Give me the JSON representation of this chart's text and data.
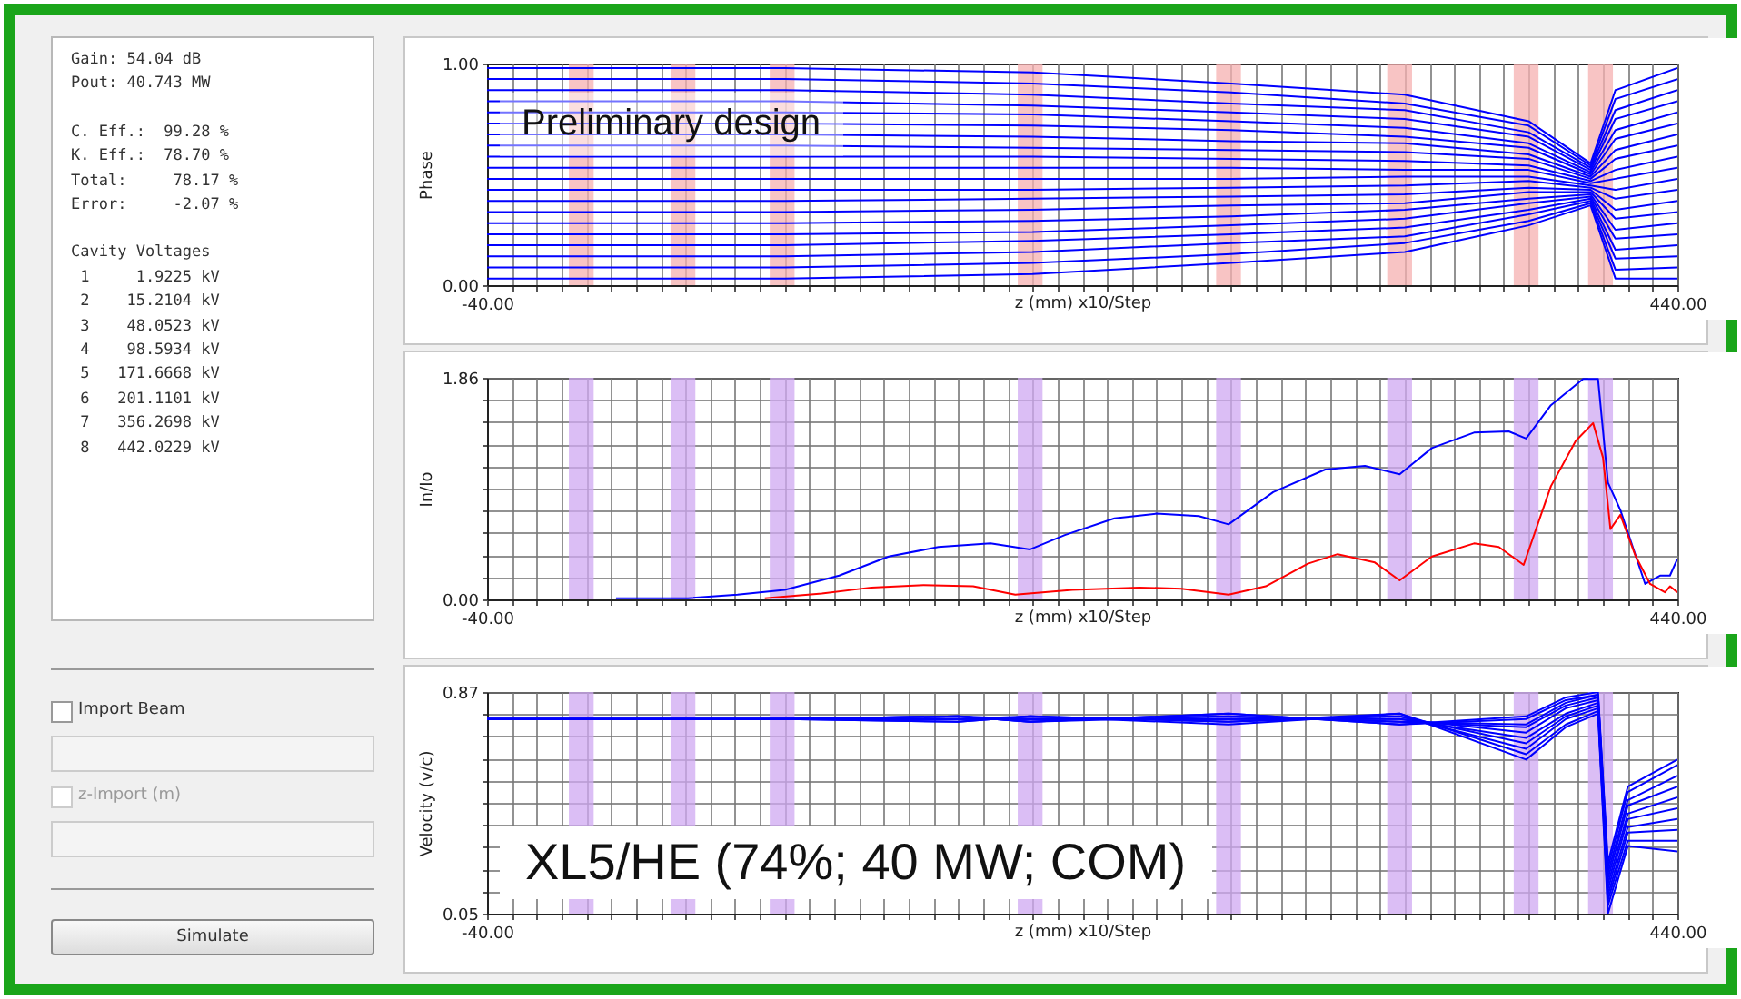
{
  "chart_data": [
    {
      "type": "other",
      "annotations": [
        "Gain: 54.04 dB",
        "Pout: 40.743 MW",
        "C. Eff.:  99.28 %",
        "K. Eff.:  78.70 %",
        "Total:     78.17 %",
        "Error:     -2.07 %",
        "Cavity Voltages",
        " 1     1.9225 kV",
        " 2    15.2104 kV",
        " 3    48.0523 kV",
        " 4    98.5934 kV",
        " 5   171.6668 kV",
        " 6   201.1101 kV",
        " 7   356.2698 kV",
        " 8   442.0229 kV"
      ]
    },
    {
      "type": "other",
      "annotations": [
        "Import Beam",
        "z-Import (m)",
        "Simulate"
      ]
    },
    {
      "type": "line",
      "ylabel": "Phase",
      "xlabel": "z (mm)  x10/Step",
      "annotations": [
        "Preliminary design"
      ],
      "grid": "x",
      "xlim": [
        -40,
        440
      ],
      "xticks": [
        {
          "value": -40,
          "label": "-40.00"
        },
        {
          "value": -30,
          "label": null
        },
        {
          "value": -20,
          "label": null
        },
        {
          "value": -10,
          "label": null
        },
        {
          "value": 0,
          "label": null
        },
        {
          "value": 10,
          "label": null
        },
        {
          "value": 20,
          "label": null
        },
        {
          "value": 30,
          "label": null
        },
        {
          "value": 40,
          "label": null
        },
        {
          "value": 50,
          "label": null
        },
        {
          "value": 60,
          "label": null
        },
        {
          "value": 70,
          "label": null
        },
        {
          "value": 80,
          "label": null
        },
        {
          "value": 90,
          "label": null
        },
        {
          "value": 100,
          "label": null
        },
        {
          "value": 110,
          "label": null
        },
        {
          "value": 120,
          "label": null
        },
        {
          "value": 130,
          "label": null
        },
        {
          "value": 140,
          "label": null
        },
        {
          "value": 150,
          "label": null
        },
        {
          "value": 160,
          "label": null
        },
        {
          "value": 170,
          "label": null
        },
        {
          "value": 180,
          "label": null
        },
        {
          "value": 190,
          "label": null
        },
        {
          "value": 200,
          "label": null
        },
        {
          "value": 210,
          "label": null
        },
        {
          "value": 220,
          "label": null
        },
        {
          "value": 230,
          "label": null
        },
        {
          "value": 240,
          "label": null
        },
        {
          "value": 250,
          "label": null
        },
        {
          "value": 260,
          "label": null
        },
        {
          "value": 270,
          "label": null
        },
        {
          "value": 280,
          "label": null
        },
        {
          "value": 290,
          "label": null
        },
        {
          "value": 300,
          "label": null
        },
        {
          "value": 310,
          "label": null
        },
        {
          "value": 320,
          "label": null
        },
        {
          "value": 330,
          "label": null
        },
        {
          "value": 340,
          "label": null
        },
        {
          "value": 350,
          "label": null
        },
        {
          "value": 360,
          "label": null
        },
        {
          "value": 370,
          "label": null
        },
        {
          "value": 380,
          "label": null
        },
        {
          "value": 390,
          "label": null
        },
        {
          "value": 400,
          "label": null
        },
        {
          "value": 410,
          "label": null
        },
        {
          "value": 420,
          "label": null
        },
        {
          "value": 430,
          "label": null
        },
        {
          "value": 440,
          "label": "440.00"
        }
      ],
      "ylim": [
        0,
        1
      ],
      "yticks": [
        {
          "value": 0,
          "label": "0.00"
        },
        {
          "value": 1,
          "label": "1.00"
        }
      ],
      "bands": [
        {
          "axis": "x",
          "from": -7,
          "to": 3,
          "color": "#f5b0b0"
        },
        {
          "axis": "x",
          "from": 34,
          "to": 44,
          "color": "#f5b0b0"
        },
        {
          "axis": "x",
          "from": 74,
          "to": 84,
          "color": "#f5b0b0"
        },
        {
          "axis": "x",
          "from": 174,
          "to": 184,
          "color": "#f5b0b0"
        },
        {
          "axis": "x",
          "from": 254,
          "to": 264,
          "color": "#f5b0b0"
        },
        {
          "axis": "x",
          "from": 323,
          "to": 333,
          "color": "#f5b0b0"
        },
        {
          "axis": "x",
          "from": 374,
          "to": 384,
          "color": "#f5b0b0"
        },
        {
          "axis": "x",
          "from": 404,
          "to": 414,
          "color": "#f5b0b0"
        }
      ],
      "x": [
        -40,
        80,
        180,
        260,
        330,
        380,
        405,
        415,
        440
      ],
      "series": [
        {
          "color": "#0000ff",
          "values": [
            0.98,
            0.98,
            0.96,
            0.91,
            0.86,
            0.74,
            0.55,
            0.88,
            0.98
          ]
        },
        {
          "color": "#0000ff",
          "values": [
            0.93,
            0.93,
            0.91,
            0.87,
            0.82,
            0.72,
            0.54,
            0.84,
            0.93
          ]
        },
        {
          "color": "#0000ff",
          "values": [
            0.88,
            0.88,
            0.86,
            0.82,
            0.79,
            0.69,
            0.53,
            0.79,
            0.88
          ]
        },
        {
          "color": "#0000ff",
          "values": [
            0.83,
            0.83,
            0.81,
            0.78,
            0.75,
            0.67,
            0.52,
            0.75,
            0.83
          ]
        },
        {
          "color": "#0000ff",
          "values": [
            0.78,
            0.78,
            0.77,
            0.74,
            0.71,
            0.64,
            0.51,
            0.7,
            0.78
          ]
        },
        {
          "color": "#0000ff",
          "values": [
            0.73,
            0.73,
            0.72,
            0.7,
            0.67,
            0.62,
            0.5,
            0.66,
            0.73
          ]
        },
        {
          "color": "#0000ff",
          "values": [
            0.68,
            0.68,
            0.67,
            0.65,
            0.64,
            0.59,
            0.49,
            0.61,
            0.68
          ]
        },
        {
          "color": "#0000ff",
          "values": [
            0.63,
            0.63,
            0.62,
            0.61,
            0.6,
            0.57,
            0.48,
            0.57,
            0.63
          ]
        },
        {
          "color": "#0000ff",
          "values": [
            0.58,
            0.58,
            0.58,
            0.57,
            0.56,
            0.54,
            0.47,
            0.52,
            0.58
          ]
        },
        {
          "color": "#0000ff",
          "values": [
            0.53,
            0.53,
            0.53,
            0.53,
            0.52,
            0.52,
            0.46,
            0.48,
            0.53
          ]
        },
        {
          "color": "#0000ff",
          "values": [
            0.48,
            0.48,
            0.48,
            0.48,
            0.49,
            0.49,
            0.45,
            0.43,
            0.48
          ]
        },
        {
          "color": "#0000ff",
          "values": [
            0.43,
            0.43,
            0.43,
            0.44,
            0.45,
            0.47,
            0.44,
            0.39,
            0.43
          ]
        },
        {
          "color": "#0000ff",
          "values": [
            0.38,
            0.38,
            0.39,
            0.4,
            0.41,
            0.44,
            0.43,
            0.34,
            0.38
          ]
        },
        {
          "color": "#0000ff",
          "values": [
            0.33,
            0.33,
            0.34,
            0.36,
            0.37,
            0.42,
            0.42,
            0.3,
            0.33
          ]
        },
        {
          "color": "#0000ff",
          "values": [
            0.28,
            0.28,
            0.29,
            0.31,
            0.34,
            0.39,
            0.41,
            0.25,
            0.28
          ]
        },
        {
          "color": "#0000ff",
          "values": [
            0.23,
            0.23,
            0.24,
            0.27,
            0.3,
            0.37,
            0.4,
            0.21,
            0.23
          ]
        },
        {
          "color": "#0000ff",
          "values": [
            0.18,
            0.18,
            0.2,
            0.23,
            0.26,
            0.34,
            0.39,
            0.16,
            0.18
          ]
        },
        {
          "color": "#0000ff",
          "values": [
            0.13,
            0.13,
            0.15,
            0.19,
            0.22,
            0.32,
            0.38,
            0.12,
            0.13
          ]
        },
        {
          "color": "#0000ff",
          "values": [
            0.08,
            0.08,
            0.1,
            0.14,
            0.19,
            0.29,
            0.37,
            0.07,
            0.08
          ]
        },
        {
          "color": "#0000ff",
          "values": [
            0.03,
            0.03,
            0.05,
            0.1,
            0.15,
            0.27,
            0.36,
            0.03,
            0.03
          ]
        }
      ]
    },
    {
      "type": "line",
      "ylabel": "In/Io",
      "xlabel": "z (mm)  x10/Step",
      "grid": true,
      "xlim": [
        -40,
        440
      ],
      "xticks": [
        {
          "value": -40,
          "label": "-40.00"
        },
        {
          "value": -30,
          "label": null
        },
        {
          "value": -20,
          "label": null
        },
        {
          "value": -10,
          "label": null
        },
        {
          "value": 0,
          "label": null
        },
        {
          "value": 10,
          "label": null
        },
        {
          "value": 20,
          "label": null
        },
        {
          "value": 30,
          "label": null
        },
        {
          "value": 40,
          "label": null
        },
        {
          "value": 50,
          "label": null
        },
        {
          "value": 60,
          "label": null
        },
        {
          "value": 70,
          "label": null
        },
        {
          "value": 80,
          "label": null
        },
        {
          "value": 90,
          "label": null
        },
        {
          "value": 100,
          "label": null
        },
        {
          "value": 110,
          "label": null
        },
        {
          "value": 120,
          "label": null
        },
        {
          "value": 130,
          "label": null
        },
        {
          "value": 140,
          "label": null
        },
        {
          "value": 150,
          "label": null
        },
        {
          "value": 160,
          "label": null
        },
        {
          "value": 170,
          "label": null
        },
        {
          "value": 180,
          "label": null
        },
        {
          "value": 190,
          "label": null
        },
        {
          "value": 200,
          "label": null
        },
        {
          "value": 210,
          "label": null
        },
        {
          "value": 220,
          "label": null
        },
        {
          "value": 230,
          "label": null
        },
        {
          "value": 240,
          "label": null
        },
        {
          "value": 250,
          "label": null
        },
        {
          "value": 260,
          "label": null
        },
        {
          "value": 270,
          "label": null
        },
        {
          "value": 280,
          "label": null
        },
        {
          "value": 290,
          "label": null
        },
        {
          "value": 300,
          "label": null
        },
        {
          "value": 310,
          "label": null
        },
        {
          "value": 320,
          "label": null
        },
        {
          "value": 330,
          "label": null
        },
        {
          "value": 340,
          "label": null
        },
        {
          "value": 350,
          "label": null
        },
        {
          "value": 360,
          "label": null
        },
        {
          "value": 370,
          "label": null
        },
        {
          "value": 380,
          "label": null
        },
        {
          "value": 390,
          "label": null
        },
        {
          "value": 400,
          "label": null
        },
        {
          "value": 410,
          "label": null
        },
        {
          "value": 420,
          "label": null
        },
        {
          "value": 430,
          "label": null
        },
        {
          "value": 440,
          "label": "440.00"
        }
      ],
      "ylim": [
        0,
        1.86
      ],
      "yticks": [
        {
          "value": 0,
          "label": "0.00"
        },
        {
          "value": 0.186,
          "label": null
        },
        {
          "value": 0.372,
          "label": null
        },
        {
          "value": 0.558,
          "label": null
        },
        {
          "value": 0.744,
          "label": null
        },
        {
          "value": 0.93,
          "label": null
        },
        {
          "value": 1.116,
          "label": null
        },
        {
          "value": 1.302,
          "label": null
        },
        {
          "value": 1.488,
          "label": null
        },
        {
          "value": 1.674,
          "label": null
        },
        {
          "value": 1.86,
          "label": "1.86"
        }
      ],
      "bands": [
        {
          "axis": "x",
          "from": -7,
          "to": 3,
          "color": "#cfa8f2"
        },
        {
          "axis": "x",
          "from": 34,
          "to": 44,
          "color": "#cfa8f2"
        },
        {
          "axis": "x",
          "from": 74,
          "to": 84,
          "color": "#cfa8f2"
        },
        {
          "axis": "x",
          "from": 174,
          "to": 184,
          "color": "#cfa8f2"
        },
        {
          "axis": "x",
          "from": 254,
          "to": 264,
          "color": "#cfa8f2"
        },
        {
          "axis": "x",
          "from": 323,
          "to": 333,
          "color": "#cfa8f2"
        },
        {
          "axis": "x",
          "from": 374,
          "to": 384,
          "color": "#cfa8f2"
        },
        {
          "axis": "x",
          "from": 404,
          "to": 414,
          "color": "#cfa8f2"
        }
      ],
      "series": [
        {
          "color": "#0000ff",
          "x": [
            12,
            41,
            61,
            80,
            102,
            122,
            142,
            163,
            179,
            193,
            213,
            230,
            247,
            259,
            277,
            298,
            314,
            328,
            341,
            358,
            372,
            379,
            389,
            402,
            408,
            412,
            417,
            422,
            427,
            433,
            437,
            440
          ],
          "values": [
            0.01,
            0.01,
            0.04,
            0.08,
            0.2,
            0.36,
            0.44,
            0.47,
            0.42,
            0.54,
            0.68,
            0.72,
            0.7,
            0.63,
            0.9,
            1.09,
            1.12,
            1.05,
            1.27,
            1.4,
            1.41,
            1.35,
            1.63,
            1.85,
            1.85,
            0.98,
            0.75,
            0.44,
            0.13,
            0.2,
            0.2,
            0.34
          ]
        },
        {
          "color": "#ff0000",
          "x": [
            72,
            95,
            115,
            136,
            156,
            173,
            196,
            223,
            240,
            259,
            274,
            291,
            303,
            318,
            328,
            341,
            358,
            368,
            378,
            389,
            399,
            406,
            410,
            413,
            417,
            423,
            429,
            435,
            437,
            440
          ],
          "values": [
            0.01,
            0.05,
            0.1,
            0.12,
            0.11,
            0.04,
            0.08,
            0.1,
            0.09,
            0.04,
            0.11,
            0.3,
            0.38,
            0.31,
            0.16,
            0.36,
            0.47,
            0.44,
            0.29,
            0.95,
            1.33,
            1.48,
            1.19,
            0.59,
            0.71,
            0.37,
            0.13,
            0.06,
            0.11,
            0.06
          ]
        }
      ]
    },
    {
      "type": "line",
      "ylabel": "Velocity (v/c)",
      "xlabel": "z (mm)  x10/Step",
      "annotations": [
        "XL5/HE (74%; 40 MW; COM)"
      ],
      "grid": true,
      "xlim": [
        -40,
        440
      ],
      "xticks": [
        {
          "value": -40,
          "label": "-40.00"
        },
        {
          "value": -30,
          "label": null
        },
        {
          "value": -20,
          "label": null
        },
        {
          "value": -10,
          "label": null
        },
        {
          "value": 0,
          "label": null
        },
        {
          "value": 10,
          "label": null
        },
        {
          "value": 20,
          "label": null
        },
        {
          "value": 30,
          "label": null
        },
        {
          "value": 40,
          "label": null
        },
        {
          "value": 50,
          "label": null
        },
        {
          "value": 60,
          "label": null
        },
        {
          "value": 70,
          "label": null
        },
        {
          "value": 80,
          "label": null
        },
        {
          "value": 90,
          "label": null
        },
        {
          "value": 100,
          "label": null
        },
        {
          "value": 110,
          "label": null
        },
        {
          "value": 120,
          "label": null
        },
        {
          "value": 130,
          "label": null
        },
        {
          "value": 140,
          "label": null
        },
        {
          "value": 150,
          "label": null
        },
        {
          "value": 160,
          "label": null
        },
        {
          "value": 170,
          "label": null
        },
        {
          "value": 180,
          "label": null
        },
        {
          "value": 190,
          "label": null
        },
        {
          "value": 200,
          "label": null
        },
        {
          "value": 210,
          "label": null
        },
        {
          "value": 220,
          "label": null
        },
        {
          "value": 230,
          "label": null
        },
        {
          "value": 240,
          "label": null
        },
        {
          "value": 250,
          "label": null
        },
        {
          "value": 260,
          "label": null
        },
        {
          "value": 270,
          "label": null
        },
        {
          "value": 280,
          "label": null
        },
        {
          "value": 290,
          "label": null
        },
        {
          "value": 300,
          "label": null
        },
        {
          "value": 310,
          "label": null
        },
        {
          "value": 320,
          "label": null
        },
        {
          "value": 330,
          "label": null
        },
        {
          "value": 340,
          "label": null
        },
        {
          "value": 350,
          "label": null
        },
        {
          "value": 360,
          "label": null
        },
        {
          "value": 370,
          "label": null
        },
        {
          "value": 380,
          "label": null
        },
        {
          "value": 390,
          "label": null
        },
        {
          "value": 400,
          "label": null
        },
        {
          "value": 410,
          "label": null
        },
        {
          "value": 420,
          "label": null
        },
        {
          "value": 430,
          "label": null
        },
        {
          "value": 440,
          "label": "440.00"
        }
      ],
      "ylim": [
        0.05,
        0.87
      ],
      "yticks": [
        {
          "value": 0.05,
          "label": "0.05"
        },
        {
          "value": 0.132,
          "label": null
        },
        {
          "value": 0.214,
          "label": null
        },
        {
          "value": 0.296,
          "label": null
        },
        {
          "value": 0.378,
          "label": null
        },
        {
          "value": 0.46,
          "label": null
        },
        {
          "value": 0.542,
          "label": null
        },
        {
          "value": 0.624,
          "label": null
        },
        {
          "value": 0.706,
          "label": null
        },
        {
          "value": 0.788,
          "label": null
        },
        {
          "value": 0.87,
          "label": "0.87"
        }
      ],
      "bands": [
        {
          "axis": "x",
          "from": -7,
          "to": 3,
          "color": "#cfa8f2"
        },
        {
          "axis": "x",
          "from": 34,
          "to": 44,
          "color": "#cfa8f2"
        },
        {
          "axis": "x",
          "from": 74,
          "to": 84,
          "color": "#cfa8f2"
        },
        {
          "axis": "x",
          "from": 174,
          "to": 184,
          "color": "#cfa8f2"
        },
        {
          "axis": "x",
          "from": 254,
          "to": 264,
          "color": "#cfa8f2"
        },
        {
          "axis": "x",
          "from": 323,
          "to": 333,
          "color": "#cfa8f2"
        },
        {
          "axis": "x",
          "from": 374,
          "to": 384,
          "color": "#cfa8f2"
        },
        {
          "axis": "x",
          "from": 404,
          "to": 414,
          "color": "#cfa8f2"
        }
      ],
      "x": [
        -40,
        80,
        150,
        179,
        259,
        328,
        379,
        395,
        408,
        412,
        420,
        440
      ],
      "series": [
        {
          "color": "#0000ff",
          "values": [
            0.77,
            0.77,
            0.76,
            0.78,
            0.75,
            0.79,
            0.62,
            0.74,
            0.79,
            0.05,
            0.3,
            0.28
          ]
        },
        {
          "color": "#0000ff",
          "values": [
            0.77,
            0.77,
            0.76,
            0.78,
            0.76,
            0.79,
            0.64,
            0.75,
            0.8,
            0.08,
            0.32,
            0.32
          ]
        },
        {
          "color": "#0000ff",
          "values": [
            0.77,
            0.77,
            0.77,
            0.78,
            0.76,
            0.78,
            0.66,
            0.77,
            0.81,
            0.1,
            0.35,
            0.36
          ]
        },
        {
          "color": "#0000ff",
          "values": [
            0.77,
            0.77,
            0.77,
            0.77,
            0.77,
            0.78,
            0.68,
            0.78,
            0.82,
            0.12,
            0.37,
            0.4
          ]
        },
        {
          "color": "#0000ff",
          "values": [
            0.77,
            0.77,
            0.77,
            0.77,
            0.77,
            0.77,
            0.7,
            0.79,
            0.83,
            0.14,
            0.4,
            0.44
          ]
        },
        {
          "color": "#0000ff",
          "values": [
            0.77,
            0.77,
            0.77,
            0.77,
            0.77,
            0.77,
            0.72,
            0.81,
            0.84,
            0.16,
            0.42,
            0.48
          ]
        },
        {
          "color": "#0000ff",
          "values": [
            0.77,
            0.77,
            0.78,
            0.77,
            0.78,
            0.76,
            0.74,
            0.82,
            0.85,
            0.18,
            0.45,
            0.52
          ]
        },
        {
          "color": "#0000ff",
          "values": [
            0.77,
            0.77,
            0.78,
            0.76,
            0.78,
            0.76,
            0.75,
            0.83,
            0.86,
            0.2,
            0.47,
            0.56
          ]
        },
        {
          "color": "#0000ff",
          "values": [
            0.77,
            0.77,
            0.78,
            0.76,
            0.79,
            0.75,
            0.77,
            0.84,
            0.86,
            0.22,
            0.5,
            0.6
          ]
        },
        {
          "color": "#0000ff",
          "values": [
            0.77,
            0.77,
            0.78,
            0.76,
            0.79,
            0.75,
            0.78,
            0.85,
            0.87,
            0.24,
            0.52,
            0.62
          ]
        }
      ]
    }
  ]
}
